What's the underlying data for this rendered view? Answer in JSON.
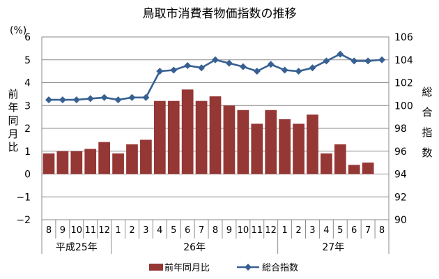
{
  "chart_data": {
    "type": "bar+line",
    "title": "鳥取市消費者物価指数の推移",
    "left_axis": {
      "unit": "(%)",
      "label_chars": [
        "前",
        "年",
        "同",
        "月",
        "比"
      ],
      "ticks": [
        "6",
        "5",
        "4",
        "3",
        "2",
        "1",
        "0",
        "−1",
        "−2"
      ],
      "ylim": [
        -2,
        6
      ]
    },
    "right_axis": {
      "label_chars": [
        "総",
        "合",
        "指",
        "数"
      ],
      "ticks": [
        "106",
        "104",
        "102",
        "100",
        "98",
        "96",
        "94",
        "92",
        "90"
      ],
      "ylim": [
        90,
        106
      ]
    },
    "categories": [
      "8",
      "9",
      "10",
      "11",
      "12",
      "1",
      "2",
      "3",
      "4",
      "5",
      "6",
      "7",
      "8",
      "9",
      "10",
      "11",
      "12",
      "1",
      "2",
      "3",
      "4",
      "5",
      "6",
      "7",
      "8"
    ],
    "groups": [
      {
        "label": "平成25年",
        "start": 0,
        "end": 4
      },
      {
        "label": "26年",
        "start": 5,
        "end": 16
      },
      {
        "label": "27年",
        "start": 17,
        "end": 24
      }
    ],
    "series": [
      {
        "name": "前年同月比",
        "kind": "bar",
        "axis": "left",
        "color": "#953735",
        "values": [
          0.9,
          1.0,
          1.0,
          1.1,
          1.4,
          0.9,
          1.3,
          1.5,
          3.2,
          3.2,
          3.7,
          3.2,
          3.4,
          3.0,
          2.8,
          2.2,
          2.8,
          2.4,
          2.2,
          2.6,
          0.9,
          1.3,
          0.4,
          0.5,
          null
        ]
      },
      {
        "name": "総合指数",
        "kind": "line",
        "axis": "right",
        "color": "#376092",
        "values": [
          100.5,
          100.5,
          100.5,
          100.6,
          100.7,
          100.5,
          100.7,
          100.7,
          103.0,
          103.1,
          103.5,
          103.3,
          104.0,
          103.7,
          103.4,
          103.0,
          103.6,
          103.1,
          103.0,
          103.3,
          103.9,
          104.5,
          103.9,
          103.9,
          104.0
        ]
      }
    ],
    "grid": true,
    "legend": "bottom"
  }
}
